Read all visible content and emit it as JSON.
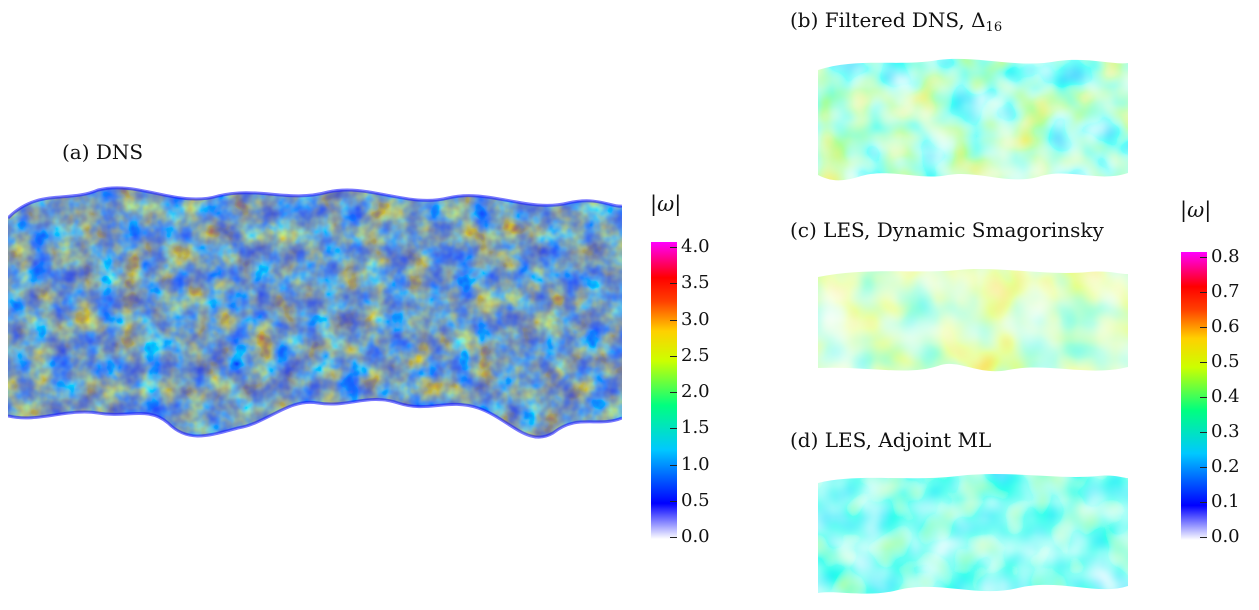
{
  "panels": {
    "a": {
      "caption": "(a) DNS"
    },
    "b": {
      "caption_main": "(b) Filtered DNS, Δ",
      "caption_sub": "16"
    },
    "c": {
      "caption": "(c) LES, Dynamic Smagorinsky"
    },
    "d": {
      "caption": "(d) LES, Adjoint ML"
    }
  },
  "colorbar_left": {
    "title": "|ω|",
    "ticks": [
      "4.0",
      "3.5",
      "3.0",
      "2.5",
      "2.0",
      "1.5",
      "1.0",
      "0.5",
      "0.0"
    ]
  },
  "colorbar_right": {
    "title": "|ω|",
    "ticks": [
      "0.8",
      "0.7",
      "0.6",
      "0.5",
      "0.4",
      "0.3",
      "0.2",
      "0.1",
      "0.0"
    ]
  },
  "colormap": [
    "#ffffff",
    "#0000ff",
    "#00c8ff",
    "#00ff80",
    "#ccff00",
    "#ffd000",
    "#ff4000",
    "#ff0000",
    "#ff00ff"
  ]
}
